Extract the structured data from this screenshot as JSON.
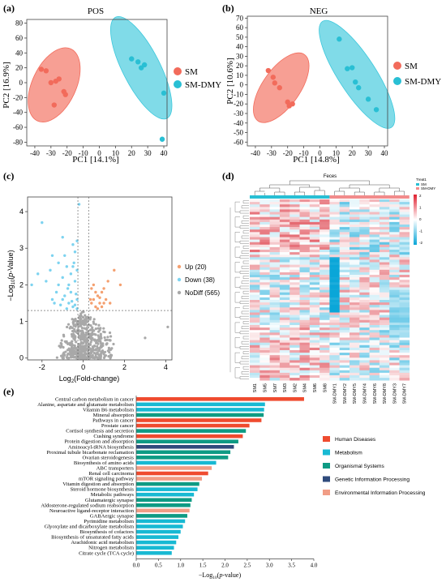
{
  "colors": {
    "sm": "#f26b5b",
    "sm_dmy": "#29bfd4",
    "sm_ellipse": "#f26b5b",
    "sm_dmy_ellipse": "#3cc8dc",
    "up": "#f4a070",
    "down": "#7dd3f0",
    "nodiff": "#a8a8a8",
    "human_diseases": "#ef4b2f",
    "metabolism": "#18b9d3",
    "organismal": "#0e9b84",
    "genetic": "#2f4b7c",
    "environmental": "#f19d86",
    "heat_high": "#e02030",
    "heat_mid": "#ffffff",
    "heat_low": "#0aa6d8"
  },
  "chart_data": [
    {
      "panel": "(a)",
      "type": "scatter",
      "title": "POS",
      "xlabel": "PC1 [14.1%]",
      "ylabel": "PC2 [16.9%]",
      "xlim": [
        -45,
        42
      ],
      "ylim": [
        -85,
        85
      ],
      "xticks": [
        "-40",
        "-30",
        "-20",
        "-10",
        "0",
        "10",
        "20",
        "30",
        "40"
      ],
      "yticks": [
        "80",
        "60",
        "40",
        "20",
        "0",
        "-20",
        "-40",
        "-60",
        "-80"
      ],
      "series": [
        {
          "name": "SM",
          "points": [
            [
              -36,
              18
            ],
            [
              -30,
              0
            ],
            [
              -27,
              2
            ],
            [
              -25,
              5
            ],
            [
              -28,
              -30
            ],
            [
              -22,
              -12
            ],
            [
              -21,
              -16
            ],
            [
              -33,
              16
            ]
          ]
        },
        {
          "name": "SM-DMY",
          "points": [
            [
              20,
              32
            ],
            [
              24,
              28
            ],
            [
              26,
              20
            ],
            [
              28,
              24
            ],
            [
              40,
              -14
            ],
            [
              39,
              -76
            ]
          ]
        }
      ],
      "legend": "right"
    },
    {
      "panel": "(b)",
      "type": "scatter",
      "title": "NEG",
      "xlabel": "PC1 [14.8%]",
      "ylabel": "PC2 [10.6%]",
      "xlim": [
        -45,
        42
      ],
      "ylim": [
        -64,
        72
      ],
      "xticks": [
        "-40",
        "-30",
        "-20",
        "-10",
        "0",
        "10",
        "20",
        "30",
        "40"
      ],
      "yticks": [
        "70",
        "60",
        "50",
        "40",
        "30",
        "20",
        "10",
        "0",
        "-10",
        "-20",
        "-30",
        "-40",
        "-50",
        "-60"
      ],
      "series": [
        {
          "name": "SM",
          "points": [
            [
              -32,
              15
            ],
            [
              -29,
              8
            ],
            [
              -25,
              -3
            ],
            [
              -20,
              -18
            ],
            [
              -17,
              -20
            ],
            [
              -28,
              2
            ],
            [
              -19,
              -22
            ]
          ]
        },
        {
          "name": "SM-DMY",
          "points": [
            [
              12,
              48
            ],
            [
              17,
              17
            ],
            [
              20,
              18
            ],
            [
              22,
              3
            ],
            [
              24,
              -3
            ],
            [
              30,
              -15
            ],
            [
              35,
              -26
            ]
          ]
        }
      ],
      "legend": "right"
    },
    {
      "panel": "(c)",
      "type": "scatter",
      "xlabel": "Log2(Fold-change)",
      "ylabel": "-Log10(p-Value)",
      "xlim": [
        -2.7,
        4.3
      ],
      "ylim": [
        -0.05,
        4.4
      ],
      "xticks": [
        "-2",
        "0",
        "2",
        "4"
      ],
      "yticks": [
        "0",
        "1",
        "2",
        "3",
        "4"
      ],
      "thresholds": {
        "x": [
          -0.26,
          0.26
        ],
        "y": 1.3
      },
      "series": [
        {
          "name": "Up (20)",
          "points": [
            [
              0.4,
              1.5
            ],
            [
              0.5,
              1.6
            ],
            [
              0.6,
              1.4
            ],
            [
              0.7,
              1.7
            ],
            [
              0.8,
              1.5
            ],
            [
              0.9,
              1.8
            ],
            [
              1.0,
              1.5
            ],
            [
              1.2,
              2.1
            ],
            [
              1.5,
              2.4
            ],
            [
              0.5,
              2.0
            ],
            [
              1.1,
              1.6
            ],
            [
              0.4,
              1.9
            ],
            [
              0.7,
              1.35
            ],
            [
              0.9,
              1.4
            ],
            [
              1.3,
              1.5
            ],
            [
              0.6,
              1.8
            ],
            [
              1.8,
              2.0
            ],
            [
              0.35,
              1.6
            ],
            [
              1.0,
              1.9
            ],
            [
              0.8,
              1.65
            ]
          ]
        },
        {
          "name": "Down (38)",
          "points": [
            [
              -0.2,
              4.2
            ],
            [
              -2.0,
              3.7
            ],
            [
              -1.0,
              3.3
            ],
            [
              -0.3,
              3.2
            ],
            [
              -0.5,
              3.1
            ],
            [
              -1.5,
              2.8
            ],
            [
              -1.2,
              2.6
            ],
            [
              -0.8,
              2.5
            ],
            [
              -0.5,
              2.5
            ],
            [
              -2.5,
              2.0
            ],
            [
              -2.2,
              2.3
            ],
            [
              -1.6,
              2.4
            ],
            [
              -1.0,
              2.2
            ],
            [
              -0.7,
              2.0
            ],
            [
              -0.4,
              2.1
            ],
            [
              -1.3,
              1.8
            ],
            [
              -1.0,
              1.6
            ],
            [
              -0.7,
              1.5
            ],
            [
              -0.5,
              1.4
            ],
            [
              -0.3,
              1.6
            ],
            [
              -0.9,
              1.7
            ],
            [
              -1.4,
              1.5
            ],
            [
              -0.6,
              1.8
            ],
            [
              -0.4,
              1.45
            ],
            [
              -0.8,
              1.35
            ],
            [
              -1.1,
              1.45
            ],
            [
              -0.35,
              1.75
            ],
            [
              -0.45,
              2.6
            ],
            [
              -0.9,
              2.8
            ],
            [
              -1.8,
              2.1
            ],
            [
              -0.6,
              2.3
            ],
            [
              -1.2,
              2.0
            ],
            [
              -0.3,
              1.35
            ],
            [
              -0.55,
              1.55
            ],
            [
              -0.75,
              1.9
            ],
            [
              -0.4,
              2.9
            ],
            [
              -0.3,
              2.4
            ],
            [
              -1.5,
              1.6
            ]
          ]
        },
        {
          "name": "NoDiff (565)",
          "points": "generated"
        }
      ],
      "legend": "right"
    },
    {
      "panel": "(d)",
      "type": "heatmap",
      "title": "Feces",
      "columns": [
        "SM1",
        "SM5",
        "SM7",
        "SM3",
        "SM2",
        "SM4",
        "SM6",
        "SM8",
        "SM-DMY1",
        "SM-DMY2",
        "SM-DMY5",
        "SM-DMY4",
        "SM-DMY6",
        "SM-DMY8",
        "SM-DMY3",
        "SM-DMY7"
      ],
      "group_legend_title": "Treat1",
      "groups": [
        "SM",
        "SM-DMY"
      ],
      "scale_ticks": [
        "2",
        "1",
        "0",
        "-1",
        "-2"
      ]
    },
    {
      "panel": "(e)",
      "type": "bar",
      "orientation": "horizontal",
      "xlabel": "-Log10(p-value)",
      "xlim": [
        0,
        4.0
      ],
      "xticks": [
        "0.0",
        "0.5",
        "1.0",
        "1.5",
        "2.0",
        "2.5",
        "3.0",
        "3.5",
        "4.0"
      ],
      "categories": [
        "Central carbon metabolism in cancer",
        "Alanine, aspartate and glutamate metabolism",
        "Vitamin B6 metabolism",
        "Mineral absorption",
        "Pathways in cancer",
        "Prostate cancer",
        "Cortisol synthesis and secretion",
        "Cushing syndrome",
        "Protein digestion and absorption",
        "Aminoacyl-tRNA biosynthesis",
        "Proximal tubule bicarbonate reclamation",
        "Ovarian steroidogenesis",
        "Biosynthesis of amino acids",
        "ABC transporters",
        "Renal cell carcinoma",
        "mTOR signaling pathway",
        "Vitamin digestion and absorption",
        "Steroid hormone biosynthesis",
        "Metabolic pathways",
        "Glutamatergic synapse",
        "Aldosterone-regulated sodium reabsorption",
        "Neuroactive ligand-receptor interaction",
        "GABAergic synapse",
        "Pyrimidine metabolism",
        "Glyoxylate and dicarboxylate metabolism",
        "Biosynthesis of cofactors",
        "Biosynthesis of unsaturated fatty acids",
        "Arachidonic acid metabolism",
        "Nitrogen metabolism",
        "Citrate cycle (TCA cycle)"
      ],
      "values": [
        3.78,
        2.9,
        2.88,
        2.87,
        2.82,
        2.55,
        2.47,
        2.4,
        2.3,
        2.2,
        2.12,
        2.07,
        1.8,
        1.7,
        1.62,
        1.48,
        1.42,
        1.38,
        1.3,
        1.25,
        1.22,
        1.2,
        1.15,
        1.1,
        1.05,
        1.0,
        0.95,
        0.9,
        0.85,
        0.8
      ],
      "groups": [
        "Human Diseases",
        "Metabolism",
        "Metabolism",
        "Organismal Systems",
        "Human Diseases",
        "Human Diseases",
        "Organismal Systems",
        "Human Diseases",
        "Organismal Systems",
        "Genetic Information Processing",
        "Organismal Systems",
        "Organismal Systems",
        "Metabolism",
        "Environmental Information Processing",
        "Human Diseases",
        "Environmental Information Processing",
        "Organismal Systems",
        "Metabolism",
        "Metabolism",
        "Organismal Systems",
        "Organismal Systems",
        "Environmental Information Processing",
        "Organismal Systems",
        "Metabolism",
        "Metabolism",
        "Metabolism",
        "Metabolism",
        "Metabolism",
        "Metabolism",
        "Metabolism"
      ],
      "legend_entries": [
        "Human Diseases",
        "Metabolism",
        "Organismal Systems",
        "Genetic Information Processing",
        "Environmental Information Processing"
      ]
    }
  ],
  "labels": {
    "a": "(a)",
    "b": "(b)",
    "c": "(c)",
    "d": "(d)",
    "e": "(e)",
    "pos": "POS",
    "neg": "NEG",
    "sm": "SM",
    "sm_dmy": "SM-DMY",
    "a_xlabel": "PC1 [14.1%]",
    "a_ylabel": "PC2 [16.9%]",
    "b_xlabel": "PC1 [14.8%]",
    "b_ylabel": "PC2 [10.6%]",
    "c_up": "Up (20)",
    "c_down": "Down (38)",
    "c_nodiff": "NoDiff (565)",
    "feces": "Feces",
    "treat1": "Treat1"
  }
}
